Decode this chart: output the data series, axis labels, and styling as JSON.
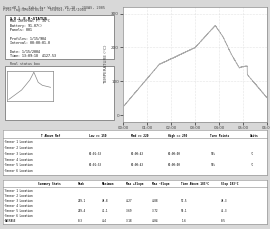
{
  "title_software": "SuperM 5.x, Edit for Windows V5.10 - JOUAS, 2005",
  "title_file": "File Tag:SM600/0514   Status: 1/15/2004",
  "bg_color": "#d8d8d8",
  "chart_bg": "#ffffff",
  "border_color": "#888888",
  "status_box": {
    "title": "S.O.L.E.R-STATUS",
    "lines": [
      "Max Internal F: 36°C",
      "Battery: 91.07()",
      "Panels: 001",
      "",
      "Profiles: 1/15/904",
      "Interval: 00:00:01.0",
      "",
      "Date: 1/15/2004",
      "Time: 13:09:18  4127.53"
    ]
  },
  "ylabel": "TEMPERATURE (°C)",
  "ylim": [
    -20,
    320
  ],
  "curve_color": "#aaaaaa",
  "dotted_line_color": "#cccccc"
}
